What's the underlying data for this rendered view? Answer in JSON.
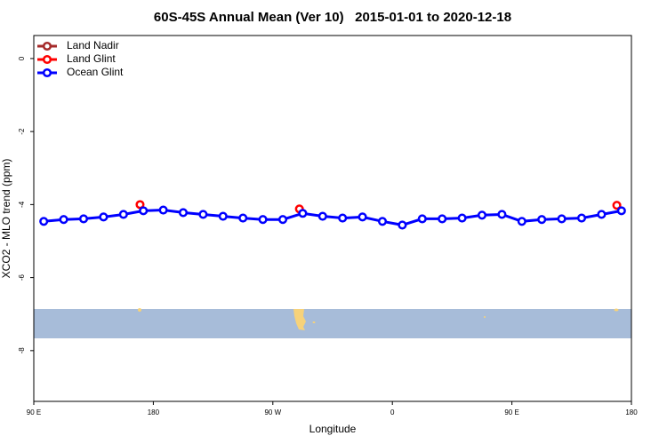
{
  "chart_data": {
    "type": "line",
    "title": "60S-45S Annual Mean (Ver 10)   2015-01-01 to 2020-12-18",
    "x_label": "Longitude",
    "y_label": "XCO2 - MLO trend (ppm)",
    "xlim": [
      90,
      540
    ],
    "ylim": [
      -9.39,
      0.63
    ],
    "xticks": [
      {
        "value": 90,
        "label": "90 E"
      },
      180,
      {
        "value": 270,
        "label": "90 W"
      },
      {
        "value": 360,
        "label": "0"
      },
      {
        "value": 450,
        "label": "90 E"
      },
      {
        "value": 540,
        "label": "180"
      }
    ],
    "yticks": [
      0,
      -2,
      -4,
      -6,
      -8
    ],
    "legend": "top-left",
    "series": [
      {
        "name": "Land Nadir",
        "color": "#a52a2a",
        "x": [],
        "values": []
      },
      {
        "name": "Land Glint",
        "color": "#ff0000",
        "x": [
          170,
          290,
          529
        ],
        "values": [
          -4.0,
          -4.12,
          -4.02
        ]
      },
      {
        "name": "Ocean Glint",
        "color": "#0000ff",
        "x": [
          97.5,
          112.5,
          127.5,
          142.5,
          157.5,
          172.5,
          187.5,
          202.5,
          217.5,
          232.5,
          247.5,
          262.5,
          277.5,
          292.5,
          307.5,
          322.5,
          337.5,
          352.5,
          367.5,
          382.5,
          397.5,
          412.5,
          427.5,
          442.5,
          457.5,
          472.5,
          487.5,
          502.5,
          517.5,
          532.5
        ],
        "values": [
          -4.46,
          -4.41,
          -4.39,
          -4.34,
          -4.27,
          -4.17,
          -4.15,
          -4.22,
          -4.27,
          -4.32,
          -4.37,
          -4.41,
          -4.41,
          -4.24,
          -4.32,
          -4.37,
          -4.34,
          -4.46,
          -4.56,
          -4.39,
          -4.39,
          -4.37,
          -4.29,
          -4.27,
          -4.46,
          -4.41,
          -4.39,
          -4.37,
          -4.27,
          -4.17
        ]
      }
    ]
  }
}
